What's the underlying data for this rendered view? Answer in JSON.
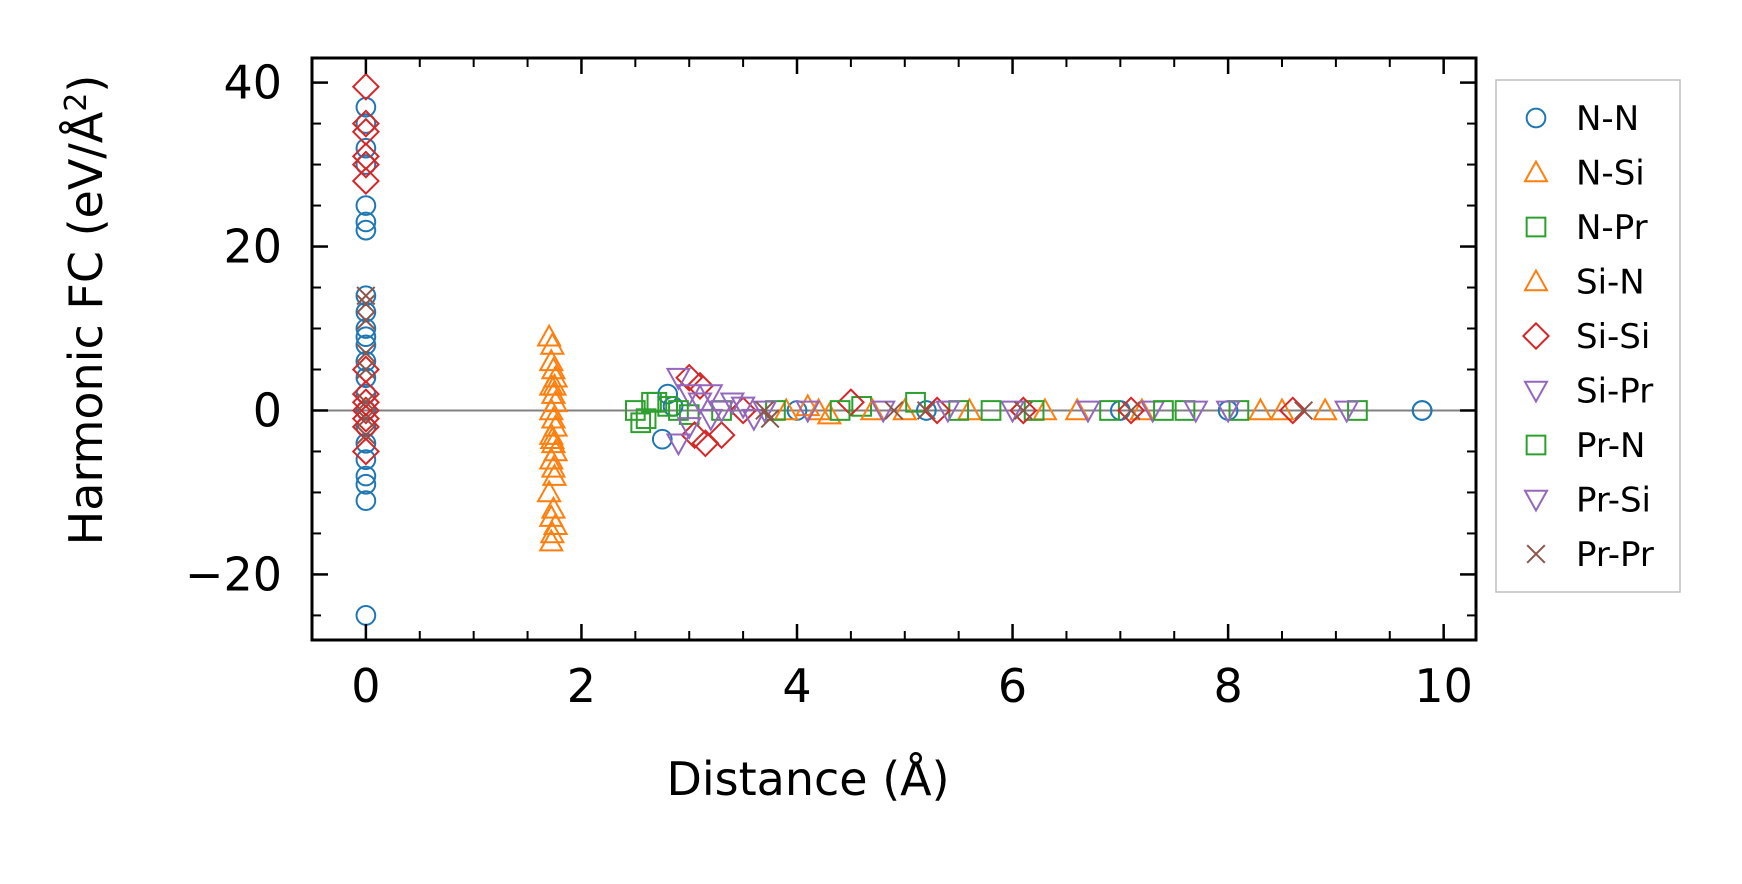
{
  "chart_data": {
    "type": "scatter",
    "xlabel": "Distance (Å)",
    "ylabel_main": "Harmonic FC (eV/Å",
    "ylabel_sup": "2",
    "ylabel_close": ")",
    "xlim": [
      -0.5,
      10.3
    ],
    "ylim": [
      -28,
      43
    ],
    "xticks": [
      0,
      2,
      4,
      6,
      8,
      10
    ],
    "xtick_labels": [
      "0",
      "2",
      "4",
      "6",
      "8",
      "10"
    ],
    "yticks": [
      -20,
      0,
      20,
      40
    ],
    "ytick_labels": [
      "−20",
      "0",
      "20",
      "40"
    ],
    "zero_line": true,
    "grid": false,
    "legend_position": "right, outside plot",
    "series": [
      {
        "name": "N-N",
        "marker": "circle",
        "color": "#1f77b4",
        "points": [
          [
            0,
            37
          ],
          [
            0,
            35
          ],
          [
            0,
            32
          ],
          [
            0,
            30
          ],
          [
            0,
            25
          ],
          [
            0,
            23
          ],
          [
            0,
            22
          ],
          [
            0,
            14
          ],
          [
            0,
            12
          ],
          [
            0,
            10
          ],
          [
            0,
            9
          ],
          [
            0,
            8
          ],
          [
            0,
            6
          ],
          [
            0,
            4
          ],
          [
            0,
            2
          ],
          [
            0,
            0
          ],
          [
            0,
            -2
          ],
          [
            0,
            -4
          ],
          [
            0,
            -6
          ],
          [
            0,
            -8
          ],
          [
            0,
            -9
          ],
          [
            0,
            -11
          ],
          [
            0,
            -25
          ],
          [
            2.75,
            -3.5
          ],
          [
            2.8,
            2
          ],
          [
            2.85,
            0.5
          ],
          [
            4.0,
            0
          ],
          [
            5.2,
            0
          ],
          [
            7.0,
            0
          ],
          [
            8.0,
            0
          ],
          [
            9.8,
            0
          ],
          [
            9.8,
            0
          ]
        ]
      },
      {
        "name": "N-Si",
        "marker": "triangle-up",
        "color": "#ff7f0e",
        "points": [
          [
            1.7,
            9
          ],
          [
            1.72,
            6
          ],
          [
            1.74,
            5
          ],
          [
            1.76,
            4
          ],
          [
            1.72,
            3
          ],
          [
            1.74,
            2
          ],
          [
            1.76,
            1
          ],
          [
            1.72,
            0
          ],
          [
            1.74,
            -1
          ],
          [
            1.76,
            -2
          ],
          [
            1.72,
            -3
          ],
          [
            1.74,
            -4
          ],
          [
            1.76,
            -5
          ],
          [
            1.72,
            -6
          ],
          [
            1.74,
            -7
          ],
          [
            1.7,
            -10
          ],
          [
            1.74,
            -12
          ],
          [
            1.72,
            -13
          ],
          [
            1.76,
            -14
          ],
          [
            1.72,
            -16
          ],
          [
            3.9,
            0
          ],
          [
            4.1,
            0.5
          ],
          [
            4.3,
            -0.5
          ],
          [
            5.0,
            0
          ],
          [
            5.6,
            0
          ],
          [
            6.3,
            0
          ],
          [
            7.2,
            0
          ],
          [
            8.3,
            0
          ],
          [
            8.9,
            0
          ]
        ]
      },
      {
        "name": "N-Pr",
        "marker": "square",
        "color": "#2ca02c",
        "points": [
          [
            2.5,
            0
          ],
          [
            2.6,
            -1
          ],
          [
            2.7,
            1
          ],
          [
            2.8,
            0.5
          ],
          [
            3.0,
            -0.5
          ],
          [
            3.3,
            0
          ],
          [
            3.8,
            0
          ],
          [
            4.6,
            0.5
          ],
          [
            5.1,
            1
          ],
          [
            5.5,
            0
          ],
          [
            6.2,
            0
          ],
          [
            6.9,
            0
          ],
          [
            7.6,
            0
          ],
          [
            8.1,
            0
          ],
          [
            9.2,
            0
          ]
        ]
      },
      {
        "name": "Si-N",
        "marker": "triangle-up",
        "color": "#ff7f0e",
        "points": [
          [
            1.73,
            8
          ],
          [
            1.75,
            3
          ],
          [
            1.73,
            -3.5
          ],
          [
            1.75,
            -8
          ],
          [
            1.73,
            -15
          ],
          [
            4.2,
            0
          ],
          [
            4.7,
            0
          ],
          [
            6.6,
            0
          ],
          [
            8.5,
            0
          ]
        ]
      },
      {
        "name": "Si-Si",
        "marker": "diamond",
        "color": "#d62728",
        "points": [
          [
            0,
            39.5
          ],
          [
            0,
            35
          ],
          [
            0,
            34
          ],
          [
            0,
            31
          ],
          [
            0,
            30
          ],
          [
            0,
            28
          ],
          [
            0,
            5
          ],
          [
            0,
            2
          ],
          [
            0,
            1
          ],
          [
            0,
            0
          ],
          [
            0,
            -1
          ],
          [
            0,
            -2
          ],
          [
            0,
            -5
          ],
          [
            3.0,
            4
          ],
          [
            3.1,
            3
          ],
          [
            3.05,
            -3
          ],
          [
            3.15,
            -4
          ],
          [
            3.3,
            -3
          ],
          [
            3.5,
            0
          ],
          [
            4.5,
            1
          ],
          [
            5.3,
            0
          ],
          [
            6.1,
            0
          ],
          [
            7.1,
            0
          ],
          [
            8.6,
            0
          ]
        ]
      },
      {
        "name": "Si-Pr",
        "marker": "triangle-down",
        "color": "#9467bd",
        "points": [
          [
            2.9,
            4
          ],
          [
            2.9,
            -4
          ],
          [
            3.0,
            2
          ],
          [
            3.1,
            1
          ],
          [
            3.2,
            -1
          ],
          [
            3.3,
            0
          ],
          [
            3.5,
            0.5
          ],
          [
            3.7,
            0
          ],
          [
            4.1,
            0
          ],
          [
            5.4,
            0
          ],
          [
            6.0,
            0
          ],
          [
            7.3,
            0
          ],
          [
            8.0,
            0
          ],
          [
            9.1,
            0
          ]
        ]
      },
      {
        "name": "Pr-N",
        "marker": "square",
        "color": "#2ca02c",
        "points": [
          [
            2.55,
            -1.5
          ],
          [
            2.65,
            1
          ],
          [
            2.9,
            0
          ],
          [
            4.4,
            0
          ],
          [
            5.8,
            0
          ],
          [
            7.4,
            0
          ]
        ]
      },
      {
        "name": "Pr-Si",
        "marker": "triangle-down",
        "color": "#9467bd",
        "points": [
          [
            3.0,
            -2
          ],
          [
            3.2,
            2
          ],
          [
            3.4,
            1
          ],
          [
            3.6,
            -1
          ],
          [
            4.8,
            0
          ],
          [
            6.7,
            0
          ],
          [
            7.7,
            0
          ]
        ]
      },
      {
        "name": "Pr-Pr",
        "marker": "x",
        "color": "#8c564b",
        "points": [
          [
            0,
            14
          ],
          [
            0,
            13
          ],
          [
            0,
            11
          ],
          [
            0,
            7
          ],
          [
            0,
            5
          ],
          [
            0,
            1
          ],
          [
            0,
            -1
          ],
          [
            0,
            -3
          ],
          [
            3.7,
            0
          ],
          [
            3.75,
            -1
          ],
          [
            4.9,
            0
          ],
          [
            5.2,
            0
          ],
          [
            6.1,
            0
          ],
          [
            7.1,
            0
          ],
          [
            8.7,
            0
          ]
        ]
      }
    ]
  }
}
